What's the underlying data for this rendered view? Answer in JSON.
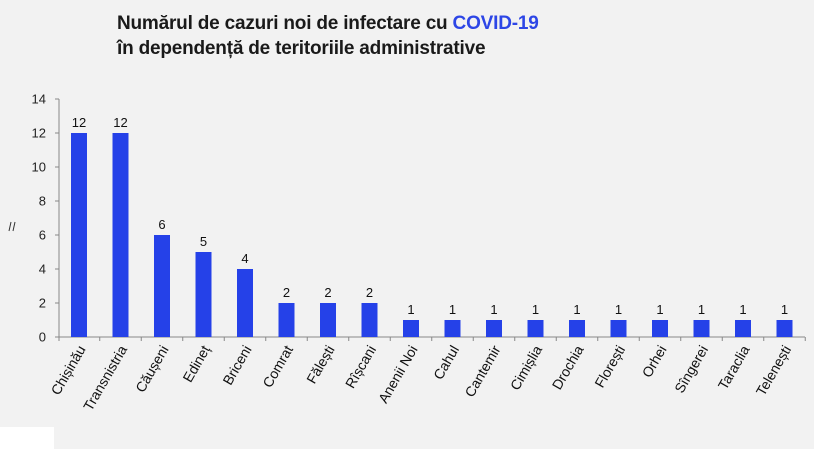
{
  "title": {
    "line1_prefix": "Numărul de cazuri noi de infectare cu ",
    "line1_accent": "COVID-19",
    "line2": "în dependență de teritoriile administrative"
  },
  "colors": {
    "bar": "#2541e8",
    "accent": "#2d46e6",
    "axis": "#888888"
  },
  "chart_data": {
    "type": "bar",
    "title": "Numărul de cazuri noi de infectare cu COVID-19 în dependență de teritoriile administrative",
    "categories": [
      "Chișinău",
      "Transnistria",
      "Căușeni",
      "Edineț",
      "Briceni",
      "Comrat",
      "Fălești",
      "Rîșcani",
      "Anenii Noi",
      "Cahul",
      "Cantemir",
      "Cimișlia",
      "Drochia",
      "Florești",
      "Orhei",
      "Sîngerei",
      "Taraclia",
      "Telenești"
    ],
    "values": [
      12,
      12,
      6,
      5,
      4,
      2,
      2,
      2,
      1,
      1,
      1,
      1,
      1,
      1,
      1,
      1,
      1,
      1
    ],
    "y_ticks": [
      "0",
      "2",
      "4",
      "6",
      "8",
      "10",
      "12",
      "14"
    ],
    "ylim": [
      0,
      14
    ],
    "grid": false,
    "legend": "none"
  }
}
